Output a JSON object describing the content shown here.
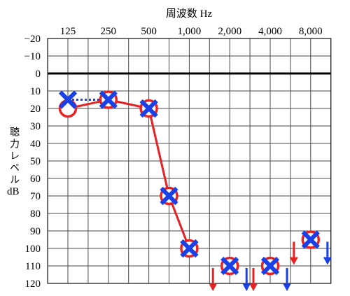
{
  "chart_data": {
    "type": "line",
    "title": "周波数 Hz",
    "ylabel": "聴力レベル",
    "yunit": "dB",
    "x_scale": "log",
    "x_tick_position": "top",
    "x_ticks": [
      125,
      250,
      500,
      1000,
      2000,
      4000,
      8000
    ],
    "x_tick_labels": [
      "125",
      "250",
      "500",
      "1,000",
      "2,000",
      "4,000",
      "8,000"
    ],
    "ylim": [
      -20,
      120
    ],
    "y_inverted": true,
    "y_ticks": [
      -20,
      -10,
      0,
      10,
      20,
      30,
      40,
      50,
      60,
      70,
      80,
      90,
      100,
      110,
      120
    ],
    "y_tick_labels": [
      "−20",
      "−10",
      "0",
      "10",
      "20",
      "30",
      "40",
      "50",
      "60",
      "70",
      "80",
      "90",
      "100",
      "110",
      "120"
    ],
    "grid": true,
    "series": [
      {
        "marker": "circle",
        "color": "#e82323",
        "line_style": "solid",
        "x": [
          125,
          250,
          500,
          750,
          1000,
          2000,
          4000,
          8000
        ],
        "y": [
          20,
          15,
          20,
          70,
          100,
          110,
          110,
          95
        ],
        "scale_out": [
          false,
          false,
          false,
          false,
          false,
          true,
          true,
          true
        ]
      },
      {
        "marker": "cross",
        "color": "#1a40e8",
        "line_style": "dotted",
        "x": [
          125,
          250,
          500,
          750,
          1000,
          2000,
          4000,
          8000
        ],
        "y": [
          15,
          15,
          20,
          70,
          100,
          110,
          110,
          95
        ],
        "scale_out": [
          false,
          false,
          false,
          false,
          false,
          true,
          true,
          true
        ]
      }
    ]
  }
}
